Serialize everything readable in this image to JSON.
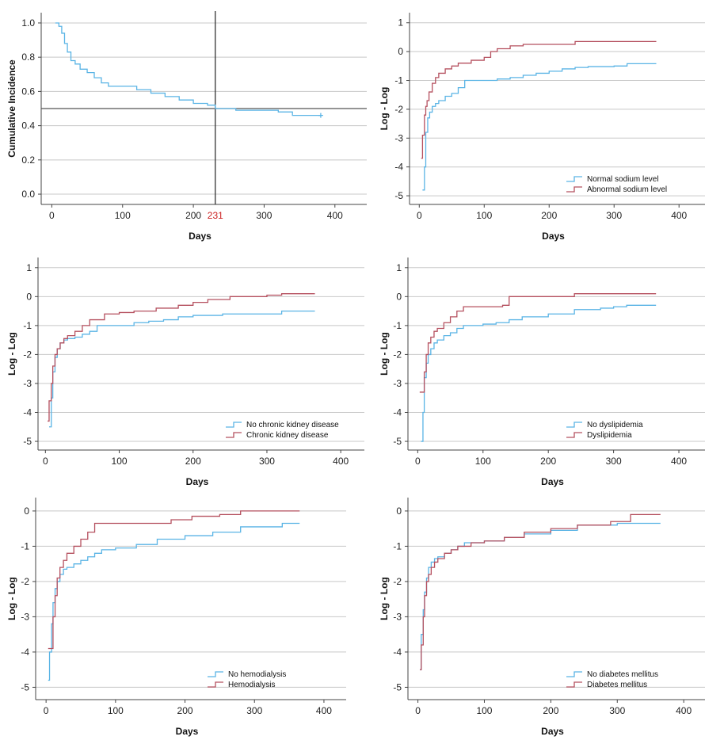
{
  "colors": {
    "series_a": "#5ab4e5",
    "series_b": "#b5505f",
    "grid": "#c8c8c8",
    "axis": "#444444"
  },
  "chart_data": [
    {
      "id": "p1",
      "type": "line",
      "xlabel": "Days",
      "ylabel": "Cumulative Incidence",
      "xlim": [
        -15,
        445
      ],
      "ylim": [
        -0.06,
        1.06
      ],
      "xticks": [
        0,
        100,
        200,
        300,
        400
      ],
      "yticks": [
        0.0,
        0.2,
        0.4,
        0.6,
        0.8,
        1.0
      ],
      "ytick_labels": [
        "0.0",
        "0.2",
        "0.4",
        "0.6",
        "0.8",
        "1.0"
      ],
      "grid": "horizontal",
      "reference_lines": {
        "x": 231,
        "y": 0.5
      },
      "x_annotation": "231",
      "series": [
        {
          "color_key": "series_a",
          "censor_marker": true,
          "x": [
            5,
            10,
            14,
            18,
            22,
            27,
            33,
            40,
            50,
            60,
            70,
            80,
            100,
            120,
            140,
            160,
            180,
            200,
            220,
            231,
            260,
            300,
            320,
            340,
            380
          ],
          "y": [
            1.0,
            0.98,
            0.94,
            0.88,
            0.83,
            0.78,
            0.76,
            0.73,
            0.71,
            0.68,
            0.65,
            0.63,
            0.63,
            0.61,
            0.59,
            0.57,
            0.55,
            0.53,
            0.52,
            0.5,
            0.49,
            0.49,
            0.48,
            0.46,
            0.46
          ]
        }
      ]
    },
    {
      "id": "p2",
      "type": "line",
      "xlabel": "Days",
      "ylabel": "Log - Log",
      "xlim": [
        -15,
        440
      ],
      "ylim": [
        -5.3,
        1.35
      ],
      "xticks": [
        0,
        100,
        200,
        300,
        400
      ],
      "yticks": [
        -5,
        -4,
        -3,
        -2,
        -1,
        0,
        1
      ],
      "ytick_labels": [
        "-5",
        "-4",
        "-3",
        "-2",
        "-1",
        "0",
        "1"
      ],
      "grid": "horizontal",
      "legend_position": "bottom-right",
      "series": [
        {
          "name": "Normal sodium level",
          "color_key": "series_a",
          "x": [
            5,
            8,
            10,
            13,
            16,
            20,
            25,
            30,
            40,
            50,
            60,
            70,
            100,
            120,
            140,
            160,
            180,
            200,
            220,
            240,
            260,
            300,
            320,
            365
          ],
          "y": [
            -4.8,
            -4.0,
            -2.8,
            -2.3,
            -2.1,
            -1.9,
            -1.8,
            -1.7,
            -1.55,
            -1.45,
            -1.25,
            -1.0,
            -1.0,
            -0.95,
            -0.9,
            -0.82,
            -0.75,
            -0.68,
            -0.6,
            -0.55,
            -0.52,
            -0.5,
            -0.42,
            -0.42
          ]
        },
        {
          "name": "Abnormal sodium level",
          "color_key": "series_b",
          "x": [
            3,
            5,
            8,
            10,
            12,
            15,
            20,
            25,
            30,
            40,
            50,
            60,
            80,
            100,
            110,
            120,
            140,
            160,
            240,
            365
          ],
          "y": [
            -3.7,
            -2.9,
            -2.2,
            -1.9,
            -1.7,
            -1.4,
            -1.1,
            -0.9,
            -0.75,
            -0.6,
            -0.5,
            -0.4,
            -0.3,
            -0.2,
            0.0,
            0.1,
            0.2,
            0.25,
            0.35,
            0.35
          ]
        }
      ]
    },
    {
      "id": "p3",
      "type": "line",
      "xlabel": "Days",
      "ylabel": "Log - Log",
      "xlim": [
        -10,
        432
      ],
      "ylim": [
        -5.3,
        1.35
      ],
      "xticks": [
        0,
        100,
        200,
        300,
        400
      ],
      "yticks": [
        -5,
        -4,
        -3,
        -2,
        -1,
        0,
        1
      ],
      "ytick_labels": [
        "-5",
        "-4",
        "-3",
        "-2",
        "-1",
        "0",
        "1"
      ],
      "grid": "horizontal",
      "legend_position": "bottom-right",
      "series": [
        {
          "name": "No chronic kidney disease",
          "color_key": "series_a",
          "x": [
            5,
            8,
            10,
            13,
            16,
            20,
            25,
            30,
            40,
            50,
            60,
            70,
            100,
            120,
            140,
            160,
            180,
            200,
            240,
            300,
            320,
            365
          ],
          "y": [
            -4.5,
            -3.5,
            -2.6,
            -2.1,
            -1.8,
            -1.6,
            -1.5,
            -1.45,
            -1.4,
            -1.3,
            -1.2,
            -1.0,
            -1.0,
            -0.9,
            -0.85,
            -0.8,
            -0.7,
            -0.65,
            -0.6,
            -0.6,
            -0.5,
            -0.5
          ]
        },
        {
          "name": "Chronic kidney disease",
          "color_key": "series_b",
          "x": [
            3,
            5,
            8,
            10,
            13,
            16,
            20,
            25,
            30,
            40,
            50,
            60,
            80,
            100,
            120,
            150,
            180,
            200,
            220,
            250,
            300,
            320,
            365
          ],
          "y": [
            -4.3,
            -3.6,
            -3.0,
            -2.4,
            -2.0,
            -1.8,
            -1.6,
            -1.45,
            -1.35,
            -1.2,
            -1.0,
            -0.8,
            -0.6,
            -0.55,
            -0.5,
            -0.4,
            -0.3,
            -0.2,
            -0.1,
            0.0,
            0.05,
            0.1,
            0.1
          ]
        }
      ]
    },
    {
      "id": "p4",
      "type": "line",
      "xlabel": "Days",
      "ylabel": "Log - Log",
      "xlim": [
        -15,
        440
      ],
      "ylim": [
        -5.3,
        1.35
      ],
      "xticks": [
        0,
        100,
        200,
        300,
        400
      ],
      "yticks": [
        -5,
        -4,
        -3,
        -2,
        -1,
        0,
        1
      ],
      "ytick_labels": [
        "-5",
        "-4",
        "-3",
        "-2",
        "-1",
        "0",
        "1"
      ],
      "grid": "horizontal",
      "legend_position": "bottom-right",
      "series": [
        {
          "name": "No dyslipidemia",
          "color_key": "series_a",
          "x": [
            5,
            8,
            10,
            13,
            16,
            20,
            25,
            30,
            40,
            50,
            60,
            70,
            100,
            120,
            140,
            160,
            200,
            240,
            280,
            300,
            320,
            365
          ],
          "y": [
            -5.0,
            -4.0,
            -2.8,
            -2.3,
            -2.0,
            -1.8,
            -1.6,
            -1.5,
            -1.35,
            -1.25,
            -1.1,
            -1.0,
            -0.95,
            -0.9,
            -0.8,
            -0.7,
            -0.6,
            -0.45,
            -0.4,
            -0.35,
            -0.3,
            -0.3
          ]
        },
        {
          "name": "Dyslipidemia",
          "color_key": "series_b",
          "x": [
            3,
            8,
            10,
            13,
            16,
            20,
            25,
            30,
            40,
            50,
            60,
            70,
            100,
            130,
            140,
            240,
            365
          ],
          "y": [
            -3.3,
            -3.3,
            -2.6,
            -2.0,
            -1.6,
            -1.4,
            -1.2,
            -1.1,
            -0.9,
            -0.7,
            -0.5,
            -0.35,
            -0.35,
            -0.3,
            0.0,
            0.1,
            0.1
          ]
        }
      ]
    },
    {
      "id": "p5",
      "type": "line",
      "xlabel": "Days",
      "ylabel": "Log - Log",
      "xlim": [
        -15,
        432
      ],
      "ylim": [
        -5.35,
        0.38
      ],
      "xticks": [
        0,
        100,
        200,
        300,
        400
      ],
      "yticks": [
        -5,
        -4,
        -3,
        -2,
        -1,
        0
      ],
      "ytick_labels": [
        "-5",
        "-4",
        "-3",
        "-2",
        "-1",
        "0"
      ],
      "grid": "horizontal",
      "legend_position": "bottom-right",
      "series": [
        {
          "name": "No hemodialysis",
          "color_key": "series_a",
          "x": [
            3,
            5,
            8,
            10,
            13,
            16,
            20,
            25,
            30,
            40,
            50,
            60,
            70,
            80,
            100,
            130,
            160,
            200,
            240,
            280,
            340,
            365
          ],
          "y": [
            -4.8,
            -4.0,
            -3.2,
            -2.6,
            -2.2,
            -2.0,
            -1.8,
            -1.65,
            -1.6,
            -1.5,
            -1.4,
            -1.3,
            -1.2,
            -1.1,
            -1.05,
            -0.95,
            -0.8,
            -0.7,
            -0.6,
            -0.45,
            -0.35,
            -0.35
          ]
        },
        {
          "name": "Hemodialysis",
          "color_key": "series_b",
          "x": [
            3,
            8,
            10,
            13,
            16,
            20,
            25,
            30,
            40,
            50,
            60,
            70,
            100,
            150,
            180,
            210,
            250,
            280,
            365
          ],
          "y": [
            -3.9,
            -3.9,
            -3.0,
            -2.4,
            -1.9,
            -1.6,
            -1.4,
            -1.2,
            -1.0,
            -0.8,
            -0.6,
            -0.35,
            -0.35,
            -0.35,
            -0.25,
            -0.15,
            -0.1,
            0.0,
            0.0
          ]
        }
      ]
    },
    {
      "id": "p6",
      "type": "line",
      "xlabel": "Days",
      "ylabel": "Log - Log",
      "xlim": [
        -15,
        432
      ],
      "ylim": [
        -5.35,
        0.38
      ],
      "xticks": [
        0,
        100,
        200,
        300,
        400
      ],
      "yticks": [
        -5,
        -4,
        -3,
        -2,
        -1,
        0
      ],
      "ytick_labels": [
        "-5",
        "-4",
        "-3",
        "-2",
        "-1",
        "0"
      ],
      "grid": "horizontal",
      "legend_position": "bottom-right",
      "series": [
        {
          "name": "No diabetes mellitus",
          "color_key": "series_a",
          "x": [
            3,
            5,
            8,
            10,
            13,
            16,
            20,
            25,
            30,
            40,
            50,
            60,
            70,
            100,
            130,
            160,
            200,
            240,
            300,
            365
          ],
          "y": [
            -4.5,
            -3.5,
            -2.8,
            -2.3,
            -1.9,
            -1.6,
            -1.45,
            -1.35,
            -1.3,
            -1.2,
            -1.1,
            -1.0,
            -0.9,
            -0.85,
            -0.75,
            -0.65,
            -0.55,
            -0.4,
            -0.35,
            -0.35
          ]
        },
        {
          "name": "Diabetes mellitus",
          "color_key": "series_b",
          "x": [
            3,
            5,
            8,
            10,
            13,
            16,
            20,
            25,
            30,
            40,
            50,
            60,
            80,
            100,
            130,
            160,
            200,
            240,
            290,
            320,
            365
          ],
          "y": [
            -4.5,
            -3.8,
            -3.0,
            -2.4,
            -2.0,
            -1.8,
            -1.6,
            -1.45,
            -1.35,
            -1.2,
            -1.1,
            -1.0,
            -0.9,
            -0.85,
            -0.75,
            -0.6,
            -0.5,
            -0.4,
            -0.3,
            -0.1,
            -0.1
          ]
        }
      ]
    }
  ]
}
